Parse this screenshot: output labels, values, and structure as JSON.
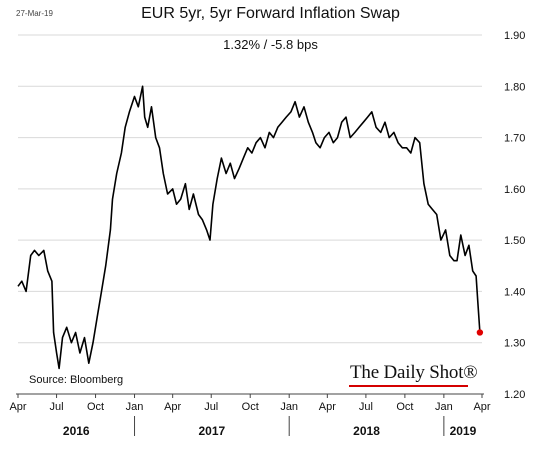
{
  "header": {
    "date": "27-Mar-19",
    "title": "EUR 5yr, 5yr Forward Inflation Swap",
    "subtitle": "1.32%  /  -5.8 bps"
  },
  "footer": {
    "source": "Source: Bloomberg",
    "brand": "The Daily Shot®",
    "brand_accent": "#d40000"
  },
  "chart_data": {
    "type": "line",
    "title": "EUR 5yr, 5yr Forward Inflation Swap",
    "ylim": [
      1.2,
      1.9
    ],
    "yticks": [
      "1.20",
      "1.30",
      "1.40",
      "1.50",
      "1.60",
      "1.70",
      "1.80",
      "1.90"
    ],
    "xlim": [
      "2016-04-01",
      "2019-04-01"
    ],
    "xticks": [
      {
        "date": "2016-04-01",
        "label": "Apr"
      },
      {
        "date": "2016-07-01",
        "label": "Jul"
      },
      {
        "date": "2016-10-01",
        "label": "Oct"
      },
      {
        "date": "2017-01-01",
        "label": "Jan"
      },
      {
        "date": "2017-04-01",
        "label": "Apr"
      },
      {
        "date": "2017-07-01",
        "label": "Jul"
      },
      {
        "date": "2017-10-01",
        "label": "Oct"
      },
      {
        "date": "2018-01-01",
        "label": "Jan"
      },
      {
        "date": "2018-04-01",
        "label": "Apr"
      },
      {
        "date": "2018-07-01",
        "label": "Jul"
      },
      {
        "date": "2018-10-01",
        "label": "Oct"
      },
      {
        "date": "2019-01-01",
        "label": "Jan"
      },
      {
        "date": "2019-04-01",
        "label": "Apr"
      }
    ],
    "years": [
      {
        "label": "2016",
        "from": "2016-04-01",
        "to": "2017-01-01"
      },
      {
        "label": "2017",
        "from": "2017-01-01",
        "to": "2018-01-01"
      },
      {
        "label": "2018",
        "from": "2018-01-01",
        "to": "2019-01-01"
      },
      {
        "label": "2019",
        "from": "2019-01-01",
        "to": "2019-04-01"
      }
    ],
    "grid": true,
    "line_color": "#000000",
    "last_point_color": "#e00000",
    "series": [
      {
        "x": [
          "2016-04-01",
          "2016-04-10",
          "2016-04-20",
          "2016-05-01",
          "2016-05-10",
          "2016-05-20",
          "2016-06-01",
          "2016-06-10",
          "2016-06-20",
          "2016-06-24",
          "2016-07-01",
          "2016-07-07",
          "2016-07-15",
          "2016-07-25",
          "2016-08-05",
          "2016-08-15",
          "2016-08-25",
          "2016-09-05",
          "2016-09-15",
          "2016-09-25",
          "2016-10-05",
          "2016-10-15",
          "2016-10-25",
          "2016-11-05",
          "2016-11-10",
          "2016-11-20",
          "2016-12-01",
          "2016-12-10",
          "2016-12-20",
          "2017-01-01",
          "2017-01-10",
          "2017-01-20",
          "2017-01-25",
          "2017-02-01",
          "2017-02-10",
          "2017-02-20",
          "2017-03-01",
          "2017-03-10",
          "2017-03-20",
          "2017-04-01",
          "2017-04-10",
          "2017-04-20",
          "2017-05-01",
          "2017-05-10",
          "2017-05-20",
          "2017-06-01",
          "2017-06-10",
          "2017-06-20",
          "2017-06-28",
          "2017-07-05",
          "2017-07-15",
          "2017-07-25",
          "2017-08-05",
          "2017-08-15",
          "2017-08-25",
          "2017-09-05",
          "2017-09-15",
          "2017-09-25",
          "2017-10-05",
          "2017-10-15",
          "2017-10-25",
          "2017-11-05",
          "2017-11-15",
          "2017-11-25",
          "2017-12-05",
          "2017-12-15",
          "2017-12-25",
          "2018-01-05",
          "2018-01-15",
          "2018-01-25",
          "2018-02-05",
          "2018-02-15",
          "2018-02-25",
          "2018-03-05",
          "2018-03-15",
          "2018-03-25",
          "2018-04-05",
          "2018-04-15",
          "2018-04-25",
          "2018-05-05",
          "2018-05-15",
          "2018-05-25",
          "2018-06-05",
          "2018-06-15",
          "2018-06-25",
          "2018-07-05",
          "2018-07-15",
          "2018-07-25",
          "2018-08-05",
          "2018-08-15",
          "2018-08-25",
          "2018-09-05",
          "2018-09-15",
          "2018-09-25",
          "2018-10-05",
          "2018-10-15",
          "2018-10-25",
          "2018-11-05",
          "2018-11-15",
          "2018-11-25",
          "2018-12-05",
          "2018-12-15",
          "2018-12-25",
          "2019-01-05",
          "2019-01-15",
          "2019-01-25",
          "2019-02-01",
          "2019-02-10",
          "2019-02-20",
          "2019-03-01",
          "2019-03-10",
          "2019-03-18",
          "2019-03-22",
          "2019-03-27"
        ],
        "y": [
          1.41,
          1.42,
          1.4,
          1.47,
          1.48,
          1.47,
          1.48,
          1.44,
          1.42,
          1.32,
          1.28,
          1.25,
          1.31,
          1.33,
          1.3,
          1.32,
          1.28,
          1.31,
          1.26,
          1.3,
          1.35,
          1.4,
          1.45,
          1.52,
          1.58,
          1.63,
          1.67,
          1.72,
          1.75,
          1.78,
          1.76,
          1.8,
          1.74,
          1.72,
          1.76,
          1.7,
          1.68,
          1.63,
          1.59,
          1.6,
          1.57,
          1.58,
          1.61,
          1.56,
          1.59,
          1.55,
          1.54,
          1.52,
          1.5,
          1.57,
          1.62,
          1.66,
          1.63,
          1.65,
          1.62,
          1.64,
          1.66,
          1.68,
          1.67,
          1.69,
          1.7,
          1.68,
          1.71,
          1.7,
          1.72,
          1.73,
          1.74,
          1.75,
          1.77,
          1.74,
          1.76,
          1.73,
          1.71,
          1.69,
          1.68,
          1.7,
          1.71,
          1.69,
          1.7,
          1.73,
          1.74,
          1.7,
          1.71,
          1.72,
          1.73,
          1.74,
          1.75,
          1.72,
          1.71,
          1.73,
          1.7,
          1.71,
          1.69,
          1.68,
          1.68,
          1.67,
          1.7,
          1.69,
          1.61,
          1.57,
          1.56,
          1.55,
          1.5,
          1.52,
          1.47,
          1.46,
          1.46,
          1.51,
          1.47,
          1.49,
          1.44,
          1.43,
          1.38,
          1.32
        ]
      }
    ]
  }
}
